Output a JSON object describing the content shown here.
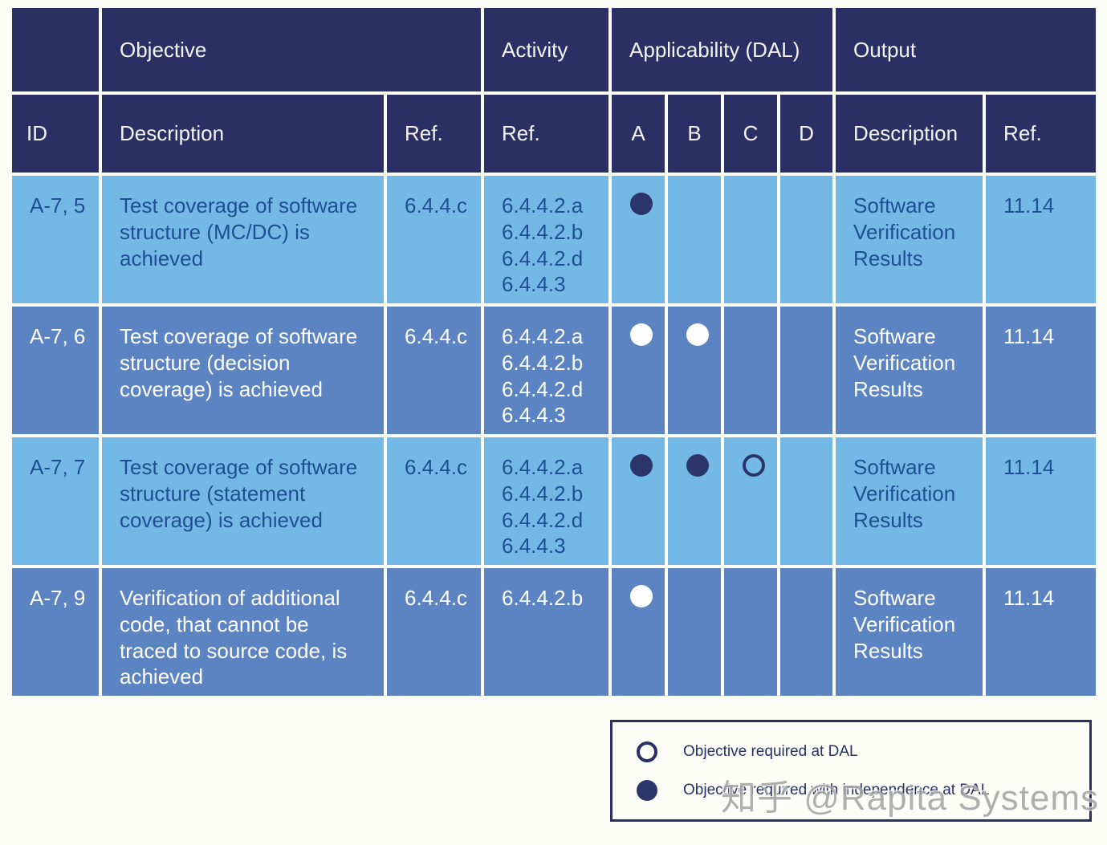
{
  "colors": {
    "header_navy": "#2b3064",
    "light_row_blue": "#74b9e5",
    "dark_row_blue": "#5c84c2",
    "text_on_light_rows": "#1e4f94",
    "text_on_dark_rows": "#ffffff",
    "marker_navy": "#2b3569",
    "gridline_white": "#fdfdf7",
    "watermark_gray": "#a2a2a2"
  },
  "table": {
    "header_groups": [
      {
        "label": ""
      },
      {
        "label": "Objective"
      },
      {
        "label": "Activity"
      },
      {
        "label": "Applicability (DAL)"
      },
      {
        "label": "Output"
      }
    ],
    "columns": [
      "ID",
      "Description",
      "Ref.",
      "Ref.",
      "A",
      "B",
      "C",
      "D",
      "Description",
      "Ref."
    ],
    "dal_levels": [
      "A",
      "B",
      "C",
      "D"
    ],
    "rows": [
      {
        "id": "A-7, 5",
        "objective_description": "Test coverage of software structure (MC/DC) is achieved",
        "objective_ref": "6.4.4.c",
        "activity_refs": [
          "6.4.4.2.a",
          "6.4.4.2.b",
          "6.4.4.2.d",
          "6.4.4.3"
        ],
        "dal": [
          "filled",
          "",
          "",
          ""
        ],
        "output_description": "Software Verification Results",
        "output_ref": "11.14"
      },
      {
        "id": "A-7, 6",
        "objective_description": "Test coverage of software structure (decision coverage) is achieved",
        "objective_ref": "6.4.4.c",
        "activity_refs": [
          "6.4.4.2.a",
          "6.4.4.2.b",
          "6.4.4.2.d",
          "6.4.4.3"
        ],
        "dal": [
          "filled",
          "filled",
          "",
          ""
        ],
        "output_description": "Software Verification Results",
        "output_ref": "11.14"
      },
      {
        "id": "A-7, 7",
        "objective_description": "Test coverage of software structure (statement coverage) is achieved",
        "objective_ref": "6.4.4.c",
        "activity_refs": [
          "6.4.4.2.a",
          "6.4.4.2.b",
          "6.4.4.2.d",
          "6.4.4.3"
        ],
        "dal": [
          "filled",
          "filled",
          "open",
          ""
        ],
        "output_description": "Software Verification Results",
        "output_ref": "11.14"
      },
      {
        "id": "A-7, 9",
        "objective_description": "Verification of additional code, that cannot be traced to source code, is achieved",
        "objective_ref": "6.4.4.c",
        "activity_refs": [
          "6.4.4.2.b"
        ],
        "dal": [
          "filled",
          "",
          "",
          ""
        ],
        "output_description": "Software Verification Results",
        "output_ref": "11.14"
      }
    ]
  },
  "legend": {
    "items": [
      {
        "marker": "open",
        "label": "Objective required at DAL"
      },
      {
        "marker": "filled",
        "label": "Objective required with independence at DAL"
      }
    ]
  },
  "watermark": "知乎 @Rapita Systems"
}
